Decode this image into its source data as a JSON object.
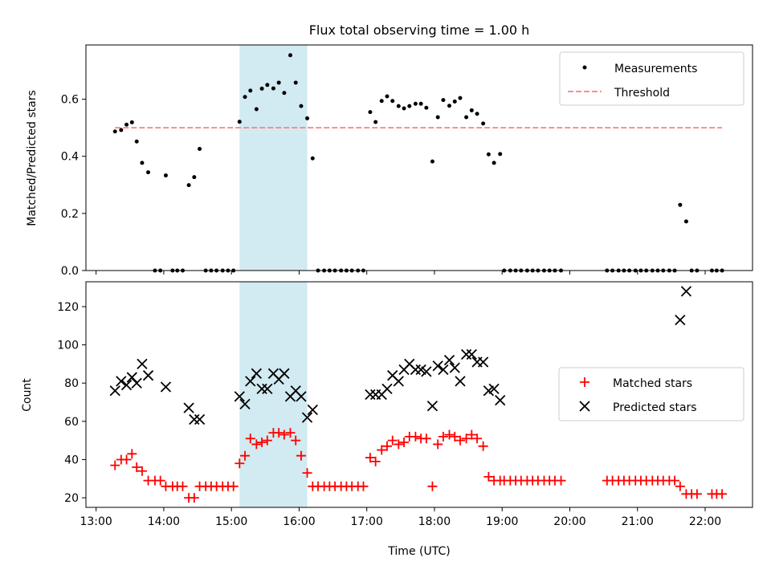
{
  "title": "Flux total observing time = 1.00 h",
  "colors": {
    "measurements": "#000000",
    "threshold": "#ff7f7f",
    "matched": "#ff0000",
    "predicted": "#000000",
    "highlight": "#add8e6"
  },
  "chart_data": [
    {
      "type": "scatter",
      "ylabel": "Matched/Predicted stars",
      "xlabel": "",
      "x_unit": "hours (UTC)",
      "xlim": [
        12.85,
        22.7
      ],
      "ylim": [
        0,
        0.79
      ],
      "yticks": [
        0.0,
        0.2,
        0.4,
        0.6
      ],
      "ytick_labels": [
        "0.0",
        "0.2",
        "0.4",
        "0.6"
      ],
      "shaded_span": [
        15.12,
        16.12
      ],
      "legend": {
        "position": "top-right",
        "entries": [
          "Measurements",
          "Threshold"
        ]
      },
      "threshold": {
        "name": "Threshold",
        "value": 0.5,
        "x_range": [
          13.28,
          22.25
        ]
      },
      "series": [
        {
          "name": "Measurements",
          "marker": "dot",
          "points": [
            [
              13.28,
              0.487
            ],
            [
              13.37,
              0.492
            ],
            [
              13.45,
              0.511
            ],
            [
              13.53,
              0.519
            ],
            [
              13.6,
              0.452
            ],
            [
              13.68,
              0.377
            ],
            [
              13.77,
              0.344
            ],
            [
              13.87,
              0.0
            ],
            [
              13.95,
              0.0
            ],
            [
              14.03,
              0.333
            ],
            [
              14.13,
              0.0
            ],
            [
              14.2,
              0.0
            ],
            [
              14.28,
              0.0
            ],
            [
              14.37,
              0.299
            ],
            [
              14.45,
              0.327
            ],
            [
              14.53,
              0.426
            ],
            [
              14.62,
              0.0
            ],
            [
              14.7,
              0.0
            ],
            [
              14.78,
              0.0
            ],
            [
              14.87,
              0.0
            ],
            [
              14.95,
              0.0
            ],
            [
              15.03,
              0.0
            ],
            [
              15.12,
              0.521
            ],
            [
              15.2,
              0.608
            ],
            [
              15.28,
              0.63
            ],
            [
              15.37,
              0.565
            ],
            [
              15.45,
              0.637
            ],
            [
              15.53,
              0.65
            ],
            [
              15.62,
              0.638
            ],
            [
              15.7,
              0.658
            ],
            [
              15.78,
              0.622
            ],
            [
              15.87,
              0.754
            ],
            [
              15.95,
              0.658
            ],
            [
              16.03,
              0.576
            ],
            [
              16.12,
              0.533
            ],
            [
              16.2,
              0.393
            ],
            [
              16.28,
              0.0
            ],
            [
              16.37,
              0.0
            ],
            [
              16.45,
              0.0
            ],
            [
              16.53,
              0.0
            ],
            [
              16.62,
              0.0
            ],
            [
              16.7,
              0.0
            ],
            [
              16.78,
              0.0
            ],
            [
              16.87,
              0.0
            ],
            [
              16.95,
              0.0
            ],
            [
              17.05,
              0.555
            ],
            [
              17.13,
              0.52
            ],
            [
              17.22,
              0.594
            ],
            [
              17.3,
              0.61
            ],
            [
              17.38,
              0.594
            ],
            [
              17.47,
              0.576
            ],
            [
              17.55,
              0.568
            ],
            [
              17.63,
              0.576
            ],
            [
              17.72,
              0.584
            ],
            [
              17.8,
              0.584
            ],
            [
              17.88,
              0.57
            ],
            [
              17.97,
              0.382
            ],
            [
              18.05,
              0.537
            ],
            [
              18.13,
              0.597
            ],
            [
              18.22,
              0.577
            ],
            [
              18.3,
              0.592
            ],
            [
              18.38,
              0.604
            ],
            [
              18.47,
              0.537
            ],
            [
              18.55,
              0.561
            ],
            [
              18.63,
              0.549
            ],
            [
              18.72,
              0.515
            ],
            [
              18.8,
              0.407
            ],
            [
              18.88,
              0.377
            ],
            [
              18.97,
              0.408
            ],
            [
              19.03,
              0.0
            ],
            [
              19.12,
              0.0
            ],
            [
              19.2,
              0.0
            ],
            [
              19.28,
              0.0
            ],
            [
              19.37,
              0.0
            ],
            [
              19.45,
              0.0
            ],
            [
              19.53,
              0.0
            ],
            [
              19.62,
              0.0
            ],
            [
              19.7,
              0.0
            ],
            [
              19.78,
              0.0
            ],
            [
              19.87,
              0.0
            ],
            [
              20.55,
              0.0
            ],
            [
              20.63,
              0.0
            ],
            [
              20.72,
              0.0
            ],
            [
              20.8,
              0.0
            ],
            [
              20.88,
              0.0
            ],
            [
              20.97,
              0.0
            ],
            [
              21.05,
              0.0
            ],
            [
              21.13,
              0.0
            ],
            [
              21.22,
              0.0
            ],
            [
              21.3,
              0.0
            ],
            [
              21.38,
              0.0
            ],
            [
              21.47,
              0.0
            ],
            [
              21.55,
              0.0
            ],
            [
              21.63,
              0.23
            ],
            [
              21.72,
              0.172
            ],
            [
              21.8,
              0.0
            ],
            [
              21.88,
              0.0
            ],
            [
              22.1,
              0.0
            ],
            [
              22.17,
              0.0
            ],
            [
              22.25,
              0.0
            ]
          ]
        }
      ]
    },
    {
      "type": "scatter",
      "ylabel": "Count",
      "xlabel": "Time (UTC)",
      "x_unit": "hours (UTC)",
      "xlim": [
        12.85,
        22.7
      ],
      "ylim": [
        15,
        133
      ],
      "xticks": [
        13,
        14,
        15,
        16,
        17,
        18,
        19,
        20,
        21,
        22
      ],
      "xtick_labels": [
        "13:00",
        "14:00",
        "15:00",
        "16:00",
        "17:00",
        "18:00",
        "19:00",
        "20:00",
        "21:00",
        "22:00"
      ],
      "yticks": [
        20,
        40,
        60,
        80,
        100,
        120
      ],
      "ytick_labels": [
        "20",
        "40",
        "60",
        "80",
        "100",
        "120"
      ],
      "shaded_span": [
        15.12,
        16.12
      ],
      "legend": {
        "position": "center-right",
        "entries": [
          "Matched stars",
          "Predicted stars"
        ]
      },
      "series": [
        {
          "name": "Matched stars",
          "marker": "plus",
          "points": [
            [
              13.28,
              37
            ],
            [
              13.37,
              40
            ],
            [
              13.45,
              40
            ],
            [
              13.53,
              43
            ],
            [
              13.6,
              36
            ],
            [
              13.68,
              34
            ],
            [
              13.77,
              29
            ],
            [
              13.87,
              29
            ],
            [
              13.95,
              29
            ],
            [
              14.03,
              26
            ],
            [
              14.13,
              26
            ],
            [
              14.2,
              26
            ],
            [
              14.28,
              26
            ],
            [
              14.37,
              20
            ],
            [
              14.45,
              20
            ],
            [
              14.53,
              26
            ],
            [
              14.62,
              26
            ],
            [
              14.7,
              26
            ],
            [
              14.78,
              26
            ],
            [
              14.87,
              26
            ],
            [
              14.95,
              26
            ],
            [
              15.03,
              26
            ],
            [
              15.12,
              38
            ],
            [
              15.2,
              42
            ],
            [
              15.28,
              51
            ],
            [
              15.37,
              48
            ],
            [
              15.45,
              49
            ],
            [
              15.53,
              50
            ],
            [
              15.62,
              54
            ],
            [
              15.7,
              54
            ],
            [
              15.78,
              53
            ],
            [
              15.87,
              54
            ],
            [
              15.95,
              50
            ],
            [
              16.03,
              42
            ],
            [
              16.12,
              33
            ],
            [
              16.2,
              26
            ],
            [
              16.28,
              26
            ],
            [
              16.37,
              26
            ],
            [
              16.45,
              26
            ],
            [
              16.53,
              26
            ],
            [
              16.62,
              26
            ],
            [
              16.7,
              26
            ],
            [
              16.78,
              26
            ],
            [
              16.87,
              26
            ],
            [
              16.95,
              26
            ],
            [
              17.05,
              41
            ],
            [
              17.13,
              39
            ],
            [
              17.22,
              45
            ],
            [
              17.3,
              47
            ],
            [
              17.38,
              50
            ],
            [
              17.47,
              48
            ],
            [
              17.55,
              49
            ],
            [
              17.63,
              52
            ],
            [
              17.72,
              52
            ],
            [
              17.8,
              51
            ],
            [
              17.88,
              51
            ],
            [
              17.97,
              26
            ],
            [
              18.05,
              48
            ],
            [
              18.13,
              52
            ],
            [
              18.22,
              53
            ],
            [
              18.3,
              52
            ],
            [
              18.38,
              50
            ],
            [
              18.47,
              51
            ],
            [
              18.55,
              53
            ],
            [
              18.63,
              51
            ],
            [
              18.72,
              47
            ],
            [
              18.8,
              31
            ],
            [
              18.88,
              29
            ],
            [
              18.97,
              29
            ],
            [
              19.03,
              29
            ],
            [
              19.12,
              29
            ],
            [
              19.2,
              29
            ],
            [
              19.28,
              29
            ],
            [
              19.37,
              29
            ],
            [
              19.45,
              29
            ],
            [
              19.53,
              29
            ],
            [
              19.62,
              29
            ],
            [
              19.7,
              29
            ],
            [
              19.78,
              29
            ],
            [
              19.87,
              29
            ],
            [
              20.55,
              29
            ],
            [
              20.63,
              29
            ],
            [
              20.72,
              29
            ],
            [
              20.8,
              29
            ],
            [
              20.88,
              29
            ],
            [
              20.97,
              29
            ],
            [
              21.05,
              29
            ],
            [
              21.13,
              29
            ],
            [
              21.22,
              29
            ],
            [
              21.3,
              29
            ],
            [
              21.38,
              29
            ],
            [
              21.47,
              29
            ],
            [
              21.55,
              29
            ],
            [
              21.63,
              26
            ],
            [
              21.72,
              22
            ],
            [
              21.8,
              22
            ],
            [
              21.88,
              22
            ],
            [
              22.1,
              22
            ],
            [
              22.17,
              22
            ],
            [
              22.25,
              22
            ]
          ]
        },
        {
          "name": "Predicted stars",
          "marker": "x",
          "points": [
            [
              13.28,
              76
            ],
            [
              13.37,
              81
            ],
            [
              13.45,
              79
            ],
            [
              13.53,
              83
            ],
            [
              13.6,
              80
            ],
            [
              13.68,
              90
            ],
            [
              13.77,
              84
            ],
            [
              14.03,
              78
            ],
            [
              14.37,
              67
            ],
            [
              14.45,
              61
            ],
            [
              14.53,
              61
            ],
            [
              15.12,
              73
            ],
            [
              15.2,
              69
            ],
            [
              15.28,
              81
            ],
            [
              15.37,
              85
            ],
            [
              15.45,
              77
            ],
            [
              15.53,
              77
            ],
            [
              15.62,
              85
            ],
            [
              15.7,
              82
            ],
            [
              15.78,
              85
            ],
            [
              15.87,
              73
            ],
            [
              15.95,
              76
            ],
            [
              16.03,
              73
            ],
            [
              16.12,
              62
            ],
            [
              16.2,
              66
            ],
            [
              17.05,
              74
            ],
            [
              17.13,
              74
            ],
            [
              17.22,
              74
            ],
            [
              17.3,
              77
            ],
            [
              17.38,
              84
            ],
            [
              17.47,
              81
            ],
            [
              17.55,
              87
            ],
            [
              17.63,
              90
            ],
            [
              17.72,
              87
            ],
            [
              17.8,
              87
            ],
            [
              17.88,
              86
            ],
            [
              17.97,
              68
            ],
            [
              18.05,
              89
            ],
            [
              18.13,
              87
            ],
            [
              18.22,
              92
            ],
            [
              18.3,
              88
            ],
            [
              18.38,
              81
            ],
            [
              18.47,
              95
            ],
            [
              18.55,
              95
            ],
            [
              18.63,
              91
            ],
            [
              18.72,
              91
            ],
            [
              18.8,
              76
            ],
            [
              18.88,
              77
            ],
            [
              18.97,
              71
            ],
            [
              21.63,
              113
            ],
            [
              21.72,
              128
            ]
          ]
        }
      ]
    }
  ]
}
